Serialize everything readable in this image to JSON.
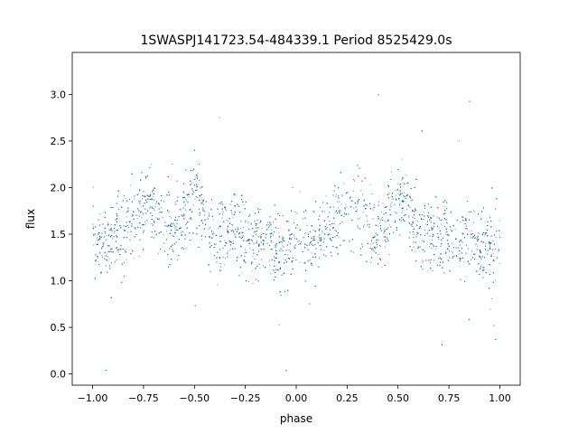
{
  "chart_data": {
    "type": "scatter",
    "title": "1SWASPJ141723.54-484339.1 Period 8525429.0s",
    "xlabel": "phase",
    "ylabel": "flux",
    "xlim": [
      -1.1,
      1.1
    ],
    "ylim": [
      -0.12,
      3.45
    ],
    "x_ticks": [
      -1.0,
      -0.75,
      -0.5,
      -0.25,
      0.0,
      0.25,
      0.5,
      0.75,
      1.0
    ],
    "x_tick_labels": [
      "−1.00",
      "−0.75",
      "−0.50",
      "−0.25",
      "0.00",
      "0.25",
      "0.50",
      "0.75",
      "1.00"
    ],
    "y_ticks": [
      0.0,
      0.5,
      1.0,
      1.5,
      2.0,
      2.5,
      3.0
    ],
    "y_tick_labels": [
      "0.0",
      "0.5",
      "1.0",
      "1.5",
      "2.0",
      "2.5",
      "3.0"
    ],
    "grid": false,
    "legend": "none",
    "point_color": "#1f77b4",
    "series": [
      {
        "x": [
          -1.0,
          -0.94,
          -0.92,
          -0.88,
          -0.86,
          -0.82,
          -0.78,
          -0.74,
          -0.72,
          -0.68,
          -0.64,
          -0.6,
          -0.56,
          -0.52,
          -0.5,
          -0.46,
          -0.42,
          -0.38,
          -0.34,
          -0.3,
          -0.26,
          -0.22,
          -0.18,
          -0.14,
          -0.1,
          -0.06,
          -0.02,
          0.0,
          0.04,
          0.08,
          0.12,
          0.16,
          0.2,
          0.24,
          0.28,
          0.3,
          0.34,
          0.38,
          0.42,
          0.46,
          0.5,
          0.54,
          0.58,
          0.62,
          0.66,
          0.7,
          0.74,
          0.78,
          0.82,
          0.86,
          0.9,
          0.94,
          0.98,
          1.0
        ],
        "y": [
          1.45,
          1.4,
          1.45,
          1.55,
          1.5,
          1.55,
          1.65,
          1.8,
          1.85,
          1.75,
          1.6,
          1.55,
          1.7,
          1.85,
          1.9,
          1.8,
          1.55,
          1.45,
          1.5,
          1.55,
          1.45,
          1.4,
          1.45,
          1.5,
          1.35,
          1.3,
          1.4,
          1.45,
          1.35,
          1.4,
          1.55,
          1.5,
          1.7,
          1.85,
          1.8,
          1.85,
          1.75,
          1.55,
          1.5,
          1.75,
          1.9,
          1.85,
          1.6,
          1.5,
          1.55,
          1.45,
          1.5,
          1.45,
          1.4,
          1.5,
          1.35,
          1.45,
          1.4,
          1.45
        ],
        "spread": 0.28,
        "sample_count": 9000
      }
    ]
  }
}
